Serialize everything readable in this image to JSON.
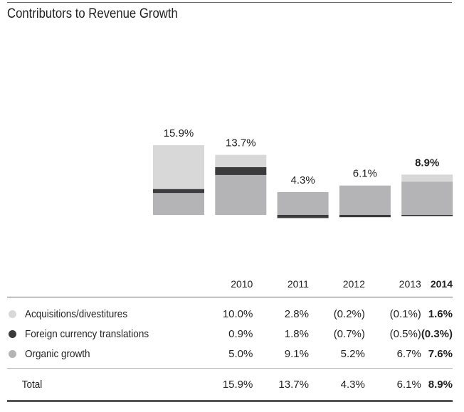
{
  "title": "Contributors to Revenue Growth",
  "colors": {
    "acquisitions": "#d8d8d8",
    "currency": "#3b3b3d",
    "organic": "#b4b4b6"
  },
  "chart_data": {
    "type": "bar",
    "stacked": true,
    "title": "Contributors to Revenue Growth",
    "categories": [
      "2010",
      "2011",
      "2012",
      "2013",
      "2014"
    ],
    "highlight_category": "2014",
    "series": [
      {
        "name": "Organic growth",
        "key": "organic",
        "values": [
          5.0,
          9.1,
          5.2,
          6.7,
          7.6
        ]
      },
      {
        "name": "Foreign currency translations",
        "key": "currency",
        "values": [
          0.9,
          1.8,
          -0.7,
          -0.5,
          -0.3
        ]
      },
      {
        "name": "Acquisitions/divestitures",
        "key": "acquisitions",
        "values": [
          10.0,
          2.8,
          -0.2,
          -0.1,
          1.6
        ]
      }
    ],
    "totals": [
      15.9,
      13.7,
      4.3,
      6.1,
      8.9
    ],
    "total_labels": [
      "15.9%",
      "13.7%",
      "4.3%",
      "6.1%",
      "8.9%"
    ],
    "xlabel": "",
    "ylabel": "",
    "grid": false,
    "legend": "table-below"
  },
  "table": {
    "years": [
      "2010",
      "2011",
      "2012",
      "2013",
      "2014"
    ],
    "rows": [
      {
        "label": "Acquisitions/divestitures",
        "key": "acquisitions",
        "values": [
          "10.0%",
          "2.8%",
          "(0.2%)",
          "(0.1%)",
          "1.6%"
        ]
      },
      {
        "label": "Foreign currency translations",
        "key": "currency",
        "values": [
          "0.9%",
          "1.8%",
          "(0.7%)",
          "(0.5%)",
          "(0.3%)"
        ]
      },
      {
        "label": "Organic growth",
        "key": "organic",
        "values": [
          "5.0%",
          "9.1%",
          "5.2%",
          "6.7%",
          "7.6%"
        ]
      }
    ],
    "total": {
      "label": "Total",
      "values": [
        "15.9%",
        "13.7%",
        "4.3%",
        "6.1%",
        "8.9%"
      ]
    }
  }
}
